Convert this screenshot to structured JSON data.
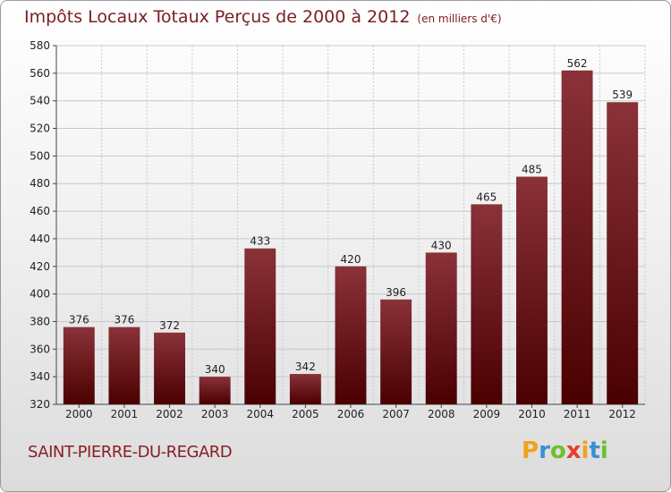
{
  "header": {
    "title": "Impôts Locaux Totaux Perçus de 2000 à 2012",
    "unit": "(en milliers d'€)"
  },
  "footer": {
    "commune": "SAINT-PIERRE-DU-REGARD",
    "logo_letters": [
      "P",
      "r",
      "o",
      "x",
      "i",
      "t",
      "i"
    ],
    "logo_colors": [
      "#f0a21c",
      "#3b8fd6",
      "#6fbf2e",
      "#e5402b",
      "#f0a21c",
      "#3b8fd6",
      "#6fbf2e"
    ]
  },
  "colors": {
    "bar_light": "#8a3238",
    "bar_dark": "#4a0000",
    "grid": "#c8c8c8",
    "text": "#222222"
  },
  "chart_data": {
    "type": "bar",
    "title": "Impôts Locaux Totaux Perçus de 2000 à 2012",
    "xlabel": "",
    "ylabel": "",
    "ylim": [
      320,
      580
    ],
    "yticks": [
      320,
      340,
      360,
      380,
      400,
      420,
      440,
      460,
      480,
      500,
      520,
      540,
      560,
      580
    ],
    "grid": true,
    "categories": [
      "2000",
      "2001",
      "2002",
      "2003",
      "2004",
      "2005",
      "2006",
      "2007",
      "2008",
      "2009",
      "2010",
      "2011",
      "2012"
    ],
    "values": [
      376,
      376,
      372,
      340,
      433,
      342,
      420,
      396,
      430,
      465,
      485,
      562,
      539
    ]
  }
}
